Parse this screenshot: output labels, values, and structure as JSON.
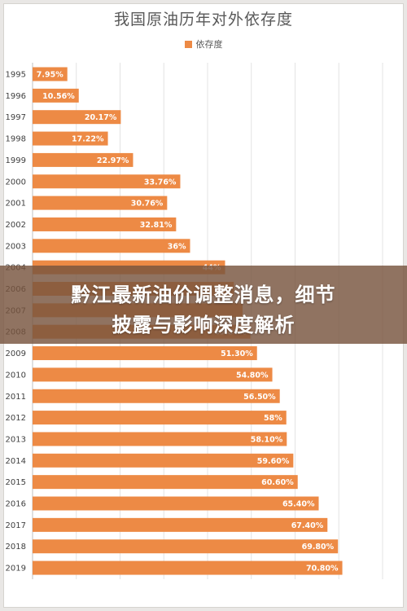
{
  "banner": {
    "line1": "黔江最新油价调整消息，细节",
    "line2": "披露与影响深度解析"
  },
  "chart_data": {
    "type": "bar",
    "orientation": "horizontal",
    "title": "我国原油历年对外依存度",
    "legend": {
      "position": "top",
      "entries": [
        "依存度"
      ]
    },
    "series": [
      {
        "name": "依存度",
        "color": "#ed8a45",
        "values": [
          7.95,
          10.56,
          20.17,
          17.22,
          22.97,
          33.76,
          30.76,
          32.81,
          36,
          44,
          46,
          48,
          49.8,
          51.3,
          54.8,
          56.5,
          58,
          58.1,
          59.6,
          60.6,
          65.4,
          67.4,
          69.8,
          70.8
        ],
        "data_labels": [
          "7.95%",
          "10.56%",
          "20.17%",
          "17.22%",
          "22.97%",
          "33.76%",
          "30.76%",
          "32.81%",
          "36%",
          "44%",
          "",
          "",
          "49.80%",
          "51.30%",
          "54.80%",
          "56.50%",
          "58%",
          "58.10%",
          "59.60%",
          "60.60%",
          "65.40%",
          "67.40%",
          "69.80%",
          "70.80%"
        ]
      }
    ],
    "categories": [
      "1995",
      "1996",
      "1997",
      "1998",
      "1999",
      "2000",
      "2001",
      "2002",
      "2003",
      "2004",
      "2006",
      "2007",
      "2008",
      "2009",
      "2010",
      "2011",
      "2012",
      "2013",
      "2014",
      "2015",
      "2016",
      "2017",
      "2018",
      "2019"
    ],
    "xlim": [
      0,
      80
    ],
    "grid": true
  }
}
